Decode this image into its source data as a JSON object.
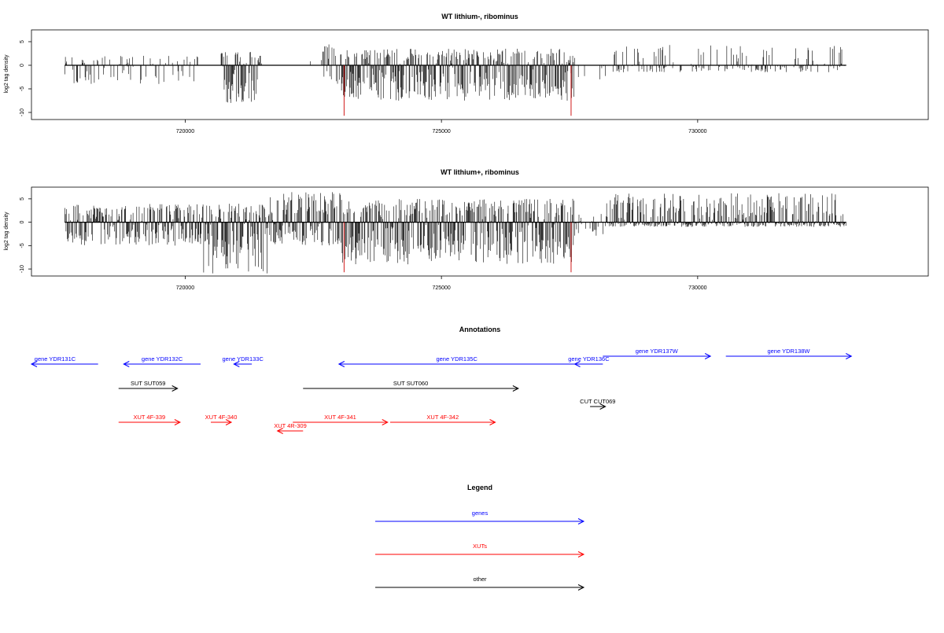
{
  "colors": {
    "gene": "#0000ff",
    "xut": "#ff0000",
    "other": "#000000",
    "bars": "#000000",
    "marker": "#cc0000"
  },
  "chart_data": [
    {
      "type": "bar",
      "title": "WT lithium-, ribominus",
      "ylabel": "log2 tag density",
      "xlim": [
        717000,
        734500
      ],
      "ylim": [
        -11.5,
        7.5
      ],
      "xticks": [
        720000,
        725000,
        730000
      ],
      "yticks": [
        5,
        0,
        -5,
        -10
      ],
      "grid": false,
      "red_markers": [
        723100,
        727530
      ],
      "regions": [
        {
          "from": 717650,
          "to": 720300,
          "density": 0.35,
          "min": -4,
          "max": 2
        },
        {
          "from": 720700,
          "to": 721500,
          "density": 0.95,
          "min": -8,
          "max": 3
        },
        {
          "from": 721700,
          "to": 722600,
          "density": 0.03,
          "min": -2,
          "max": 1
        },
        {
          "from": 722600,
          "to": 723050,
          "density": 0.5,
          "min": -4,
          "max": 4.5
        },
        {
          "from": 723050,
          "to": 727600,
          "density": 0.95,
          "min": -7.5,
          "max": 3.5
        },
        {
          "from": 727600,
          "to": 728300,
          "density": 0.1,
          "min": -3,
          "max": 0
        },
        {
          "from": 728300,
          "to": 732900,
          "density": 0.45,
          "min": -1.5,
          "max": 4.3
        }
      ]
    },
    {
      "type": "bar",
      "title": "WT lithium+, ribominus",
      "ylabel": "log2 tag density",
      "xlim": [
        717000,
        734500
      ],
      "ylim": [
        -11.5,
        7.5
      ],
      "xticks": [
        720000,
        725000,
        730000
      ],
      "yticks": [
        5,
        0,
        -5,
        -10
      ],
      "grid": false,
      "red_markers": [
        723100,
        727530
      ],
      "regions": [
        {
          "from": 717650,
          "to": 720300,
          "density": 0.95,
          "min": -5,
          "max": 4
        },
        {
          "from": 720300,
          "to": 721600,
          "density": 0.98,
          "min": -11,
          "max": 4
        },
        {
          "from": 721600,
          "to": 723050,
          "density": 0.95,
          "min": -5,
          "max": 6.5
        },
        {
          "from": 723050,
          "to": 727600,
          "density": 0.98,
          "min": -9,
          "max": 5
        },
        {
          "from": 727600,
          "to": 728200,
          "density": 0.4,
          "min": -3,
          "max": 2
        },
        {
          "from": 728200,
          "to": 732900,
          "density": 0.95,
          "min": -1,
          "max": 6.2
        }
      ]
    }
  ],
  "annotations": {
    "title": "Annotations",
    "features": [
      {
        "label": "gene YDR131C",
        "kind": "gene",
        "from": 718300,
        "to": 717000,
        "strand": "-",
        "row": 2
      },
      {
        "label": "gene YDR132C",
        "kind": "gene",
        "from": 720300,
        "to": 718800,
        "strand": "-",
        "row": 2
      },
      {
        "label": "gene YDR133C",
        "kind": "gene",
        "from": 721300,
        "to": 720950,
        "strand": "-",
        "row": 2
      },
      {
        "label": "gene YDR135C",
        "kind": "gene",
        "from": 727600,
        "to": 723000,
        "strand": "-",
        "row": 2
      },
      {
        "label": "gene YDR136C",
        "kind": "gene",
        "from": 728150,
        "to": 727600,
        "strand": "-",
        "row": 2
      },
      {
        "label": "gene YDR137W",
        "kind": "gene",
        "from": 728150,
        "to": 730250,
        "strand": "+",
        "row": 1
      },
      {
        "label": "gene YDR138W",
        "kind": "gene",
        "from": 730550,
        "to": 733000,
        "strand": "+",
        "row": 1
      },
      {
        "label": "SUT SUT059",
        "kind": "other",
        "from": 718700,
        "to": 719850,
        "strand": "+",
        "row": 3
      },
      {
        "label": "SUT SUT060",
        "kind": "other",
        "from": 722300,
        "to": 726500,
        "strand": "+",
        "row": 3
      },
      {
        "label": "CUT CUT069",
        "kind": "other",
        "from": 727900,
        "to": 728200,
        "strand": "+",
        "row": 4
      },
      {
        "label": "XUT 4F-339",
        "kind": "xut",
        "from": 718700,
        "to": 719900,
        "strand": "+",
        "row": 5
      },
      {
        "label": "XUT 4F-340",
        "kind": "xut",
        "from": 720500,
        "to": 720900,
        "strand": "+",
        "row": 5
      },
      {
        "label": "XUT 4F-341",
        "kind": "xut",
        "from": 722100,
        "to": 723950,
        "strand": "+",
        "row": 5
      },
      {
        "label": "XUT 4F-342",
        "kind": "xut",
        "from": 724000,
        "to": 726050,
        "strand": "+",
        "row": 5
      },
      {
        "label": "XUT 4R-309",
        "kind": "xut",
        "from": 722300,
        "to": 721800,
        "strand": "-",
        "row": 6
      }
    ]
  },
  "legend": {
    "title": "Legend",
    "items": [
      {
        "label": "genes",
        "kind": "gene"
      },
      {
        "label": "XUTs",
        "kind": "xut"
      },
      {
        "label": "other",
        "kind": "other"
      }
    ]
  }
}
